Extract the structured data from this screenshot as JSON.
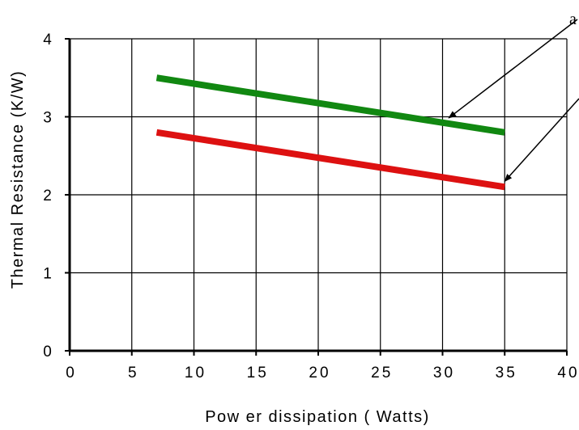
{
  "chart_data": {
    "type": "line",
    "xlabel": "Pow er dissipation ( Watts)",
    "ylabel": "Thermal Resistance (K/W)",
    "xlim": [
      0,
      40
    ],
    "ylim": [
      0,
      4
    ],
    "x_ticks": [
      "0",
      "5",
      "10",
      "15",
      "20",
      "25",
      "30",
      "35",
      "40"
    ],
    "y_ticks": [
      "0",
      "1",
      "2",
      "3",
      "4"
    ],
    "grid": true,
    "series": [
      {
        "color": "#118811",
        "x": [
          7,
          35
        ],
        "y": [
          3.5,
          2.8
        ]
      },
      {
        "color": "#dd1111",
        "x": [
          7,
          35
        ],
        "y": [
          2.8,
          2.1
        ]
      }
    ],
    "annotations": [
      {
        "text": "a",
        "target_series": 0,
        "target_x": 30.5
      },
      {
        "text": "",
        "target_series": 1,
        "target_x": 35
      }
    ]
  }
}
